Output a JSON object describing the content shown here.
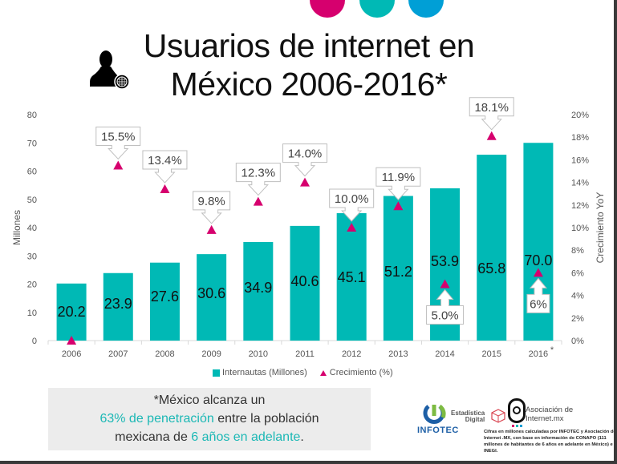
{
  "header": {
    "title_line1": "Usuarios de internet en",
    "title_line2": "México 2006-2016*",
    "decor_colors": [
      "#d6006e",
      "#00b9b5",
      "#009fd6"
    ]
  },
  "chart_data": {
    "type": "bar",
    "title": "Usuarios de internet en México 2006-2016*",
    "categories": [
      "2006",
      "2007",
      "2008",
      "2009",
      "2010",
      "2011",
      "2012",
      "2013",
      "2014",
      "2015",
      "2016"
    ],
    "category_suffix_last": "*",
    "series": [
      {
        "name": "Internautas (Millones)",
        "kind": "bar",
        "axis": "left",
        "color": "#00b9b5",
        "values": [
          20.2,
          23.9,
          27.6,
          30.6,
          34.9,
          40.6,
          45.1,
          51.2,
          53.9,
          65.8,
          70.0
        ],
        "labels": [
          "20.2",
          "23.9",
          "27.6",
          "30.6",
          "34.9",
          "40.6",
          "45.1",
          "51.2",
          "53.9",
          "65.8",
          "70.0"
        ]
      },
      {
        "name": "Crecimiento (%)",
        "kind": "scatter-triangle",
        "axis": "right",
        "color": "#d6006e",
        "values": [
          0,
          15.5,
          13.4,
          9.8,
          12.3,
          14.0,
          10.0,
          11.9,
          5.0,
          18.1,
          6
        ],
        "labels": [
          null,
          "15.5%",
          "13.4%",
          "9.8%",
          "12.3%",
          "14.0%",
          "10.0%",
          "11.9%",
          "5.0%",
          "18.1%",
          "6%"
        ]
      }
    ],
    "ylabel": "Millones",
    "ylim": [
      0,
      80
    ],
    "yticks": [
      "0",
      "10",
      "20",
      "30",
      "40",
      "50",
      "60",
      "70",
      "80"
    ],
    "y2label": "Crecimiento YoY",
    "y2lim": [
      0,
      20
    ],
    "y2ticks": [
      "0%",
      "2%",
      "4%",
      "6%",
      "8%",
      "10%",
      "12%",
      "14%",
      "16%",
      "18%",
      "20%"
    ],
    "grid": false,
    "legend": [
      "Internautas (Millones)",
      "Crecimiento (%)"
    ],
    "legend_position": "bottom"
  },
  "note": {
    "line1": "*México alcanza un",
    "highlight1": "63% de penetración",
    "line2_rest": " entre la población",
    "line3_start": "mexicana de ",
    "highlight2": "6 años en adelante",
    "line3_end": "."
  },
  "footer": {
    "logo_infotec": "INFOTEC",
    "logo_estadistica_line1": "Estadística",
    "logo_estadistica_line2": "Digital",
    "logo_asociacion_line1": "Asociación de",
    "logo_asociacion_line2": "Internet.mx",
    "source": "Cifras en millones calculadas por INFOTEC y Asociación de Internet .MX, con base en información de CONAPO (111 millones de habitantes de 6 años en adelante en México) e INEGI."
  }
}
